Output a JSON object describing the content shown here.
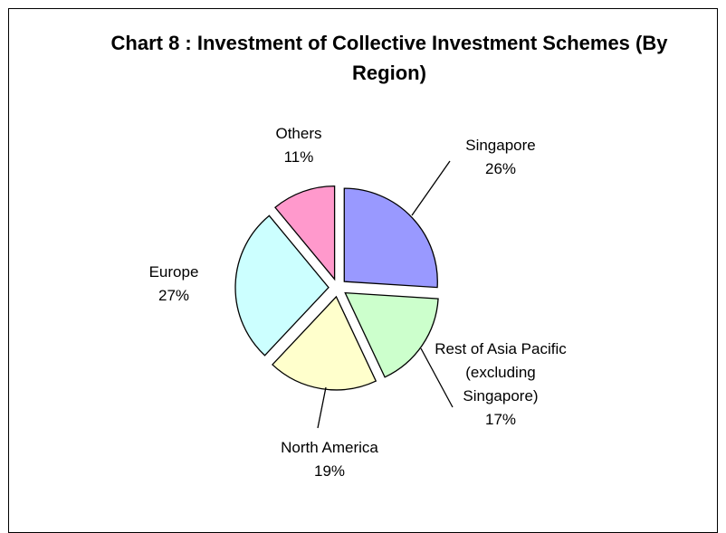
{
  "chart_data": {
    "type": "pie",
    "title": "Chart 8 : Investment of Collective Investment Schemes (By Region)",
    "categories": [
      "Singapore",
      "Rest of Asia Pacific (excluding Singapore)",
      "North America",
      "Europe",
      "Others"
    ],
    "values": [
      26,
      17,
      19,
      27,
      11
    ],
    "value_labels": [
      "26%",
      "17%",
      "19%",
      "27%",
      "11%"
    ],
    "colors": [
      "#9999ff",
      "#ccffcc",
      "#ffffcc",
      "#ccffff",
      "#ff99cc"
    ]
  }
}
